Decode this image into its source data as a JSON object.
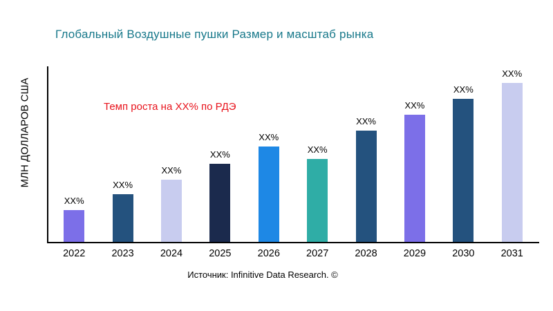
{
  "chart_data": {
    "type": "bar",
    "title": "Глобальный Воздушные пушки Размер и масштаб рынка",
    "title_color": "#17788A",
    "ylabel": "МЛН ДОЛЛАРОВ США",
    "xlabel": "",
    "categories": [
      "2022",
      "2023",
      "2024",
      "2025",
      "2026",
      "2027",
      "2028",
      "2029",
      "2030",
      "2031"
    ],
    "values": [
      20,
      30,
      39,
      49,
      60,
      52,
      70,
      80,
      90,
      100
    ],
    "bar_labels": [
      "XX%",
      "XX%",
      "XX%",
      "XX%",
      "XX%",
      "XX%",
      "XX%",
      "XX%",
      "XX%",
      "XX%"
    ],
    "bar_colors": [
      "#7C6FE8",
      "#24527E",
      "#C8CCEF",
      "#1B2A4D",
      "#1E88E5",
      "#2FADA6",
      "#24527E",
      "#7C6FE8",
      "#24527E",
      "#C8CCEF"
    ],
    "ylim": [
      0,
      110
    ],
    "grid": false,
    "legend": "none",
    "axis_color": "#000000",
    "annotation": {
      "text": "Темп роста на XX% по РДЭ",
      "color": "#E8131C"
    },
    "source": "Источник: Infinitive Data Research. ©"
  }
}
